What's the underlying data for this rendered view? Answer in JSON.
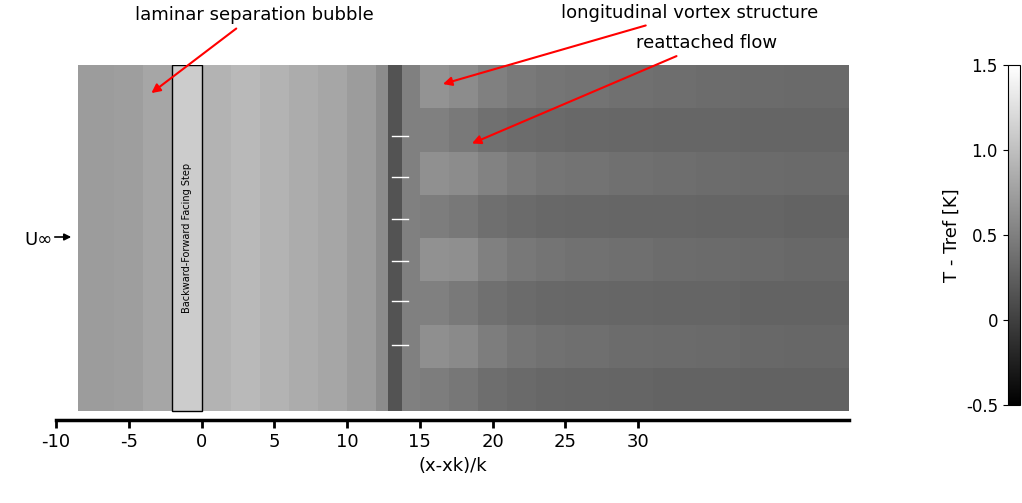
{
  "chart_data": {
    "type": "heatmap",
    "annotations": [
      "laminar separation bubble",
      "longitudinal vortex structure",
      "reattached flow"
    ],
    "x_label": "(x-xk)/k",
    "xlim": [
      -10,
      44.5
    ],
    "xticks": [
      -10,
      -5,
      0,
      5,
      10,
      15,
      20,
      25,
      30
    ],
    "x_edges": [
      -8.5,
      -6,
      -4,
      -2,
      0,
      2,
      4,
      6,
      8,
      10,
      12,
      12.8,
      13.8,
      15,
      17,
      19,
      21,
      23,
      25,
      28,
      31,
      34,
      37,
      40,
      44.5
    ],
    "cells": [
      [
        0.72,
        0.74,
        0.8,
        0.8,
        0.9,
        0.95,
        0.9,
        0.85,
        0.8,
        0.72,
        0.6,
        0.15,
        0.5,
        0.65,
        0.6,
        0.5,
        0.45,
        0.42,
        0.4,
        0.38,
        0.36,
        0.35,
        0.34,
        0.33
      ],
      [
        0.72,
        0.74,
        0.8,
        0.8,
        0.9,
        0.95,
        0.9,
        0.85,
        0.8,
        0.72,
        0.6,
        0.15,
        0.5,
        0.5,
        0.45,
        0.38,
        0.35,
        0.33,
        0.32,
        0.31,
        0.3,
        0.3,
        0.29,
        0.29
      ],
      [
        0.72,
        0.74,
        0.8,
        0.8,
        0.9,
        0.95,
        0.9,
        0.85,
        0.8,
        0.72,
        0.6,
        0.15,
        0.5,
        0.63,
        0.6,
        0.52,
        0.46,
        0.42,
        0.4,
        0.38,
        0.36,
        0.35,
        0.34,
        0.33
      ],
      [
        0.72,
        0.74,
        0.8,
        0.8,
        0.9,
        0.95,
        0.9,
        0.85,
        0.8,
        0.72,
        0.6,
        0.15,
        0.5,
        0.48,
        0.44,
        0.37,
        0.34,
        0.32,
        0.31,
        0.3,
        0.3,
        0.29,
        0.29,
        0.28
      ],
      [
        0.72,
        0.74,
        0.8,
        0.8,
        0.9,
        0.95,
        0.9,
        0.85,
        0.8,
        0.72,
        0.6,
        0.15,
        0.5,
        0.64,
        0.62,
        0.5,
        0.44,
        0.41,
        0.39,
        0.37,
        0.35,
        0.34,
        0.33,
        0.32
      ],
      [
        0.72,
        0.74,
        0.8,
        0.8,
        0.9,
        0.95,
        0.9,
        0.85,
        0.8,
        0.72,
        0.6,
        0.15,
        0.5,
        0.5,
        0.45,
        0.38,
        0.34,
        0.32,
        0.31,
        0.3,
        0.29,
        0.29,
        0.28,
        0.28
      ],
      [
        0.72,
        0.74,
        0.8,
        0.8,
        0.9,
        0.95,
        0.9,
        0.85,
        0.8,
        0.72,
        0.6,
        0.15,
        0.5,
        0.62,
        0.58,
        0.48,
        0.42,
        0.39,
        0.37,
        0.35,
        0.34,
        0.33,
        0.32,
        0.31
      ],
      [
        0.72,
        0.74,
        0.8,
        0.8,
        0.9,
        0.95,
        0.9,
        0.85,
        0.8,
        0.72,
        0.6,
        0.15,
        0.5,
        0.48,
        0.43,
        0.36,
        0.33,
        0.31,
        0.3,
        0.29,
        0.28,
        0.28,
        0.27,
        0.27
      ]
    ],
    "colorbar": {
      "label": "T - Tref [K]",
      "range": [
        -0.5,
        1.5
      ],
      "ticks": [
        -0.5,
        0,
        0.5,
        1.0,
        1.5
      ]
    },
    "step": {
      "label": "Backward-Forward Facing Step",
      "x": [
        -2,
        0
      ]
    },
    "flow_label": "U∞",
    "color": "gray"
  }
}
